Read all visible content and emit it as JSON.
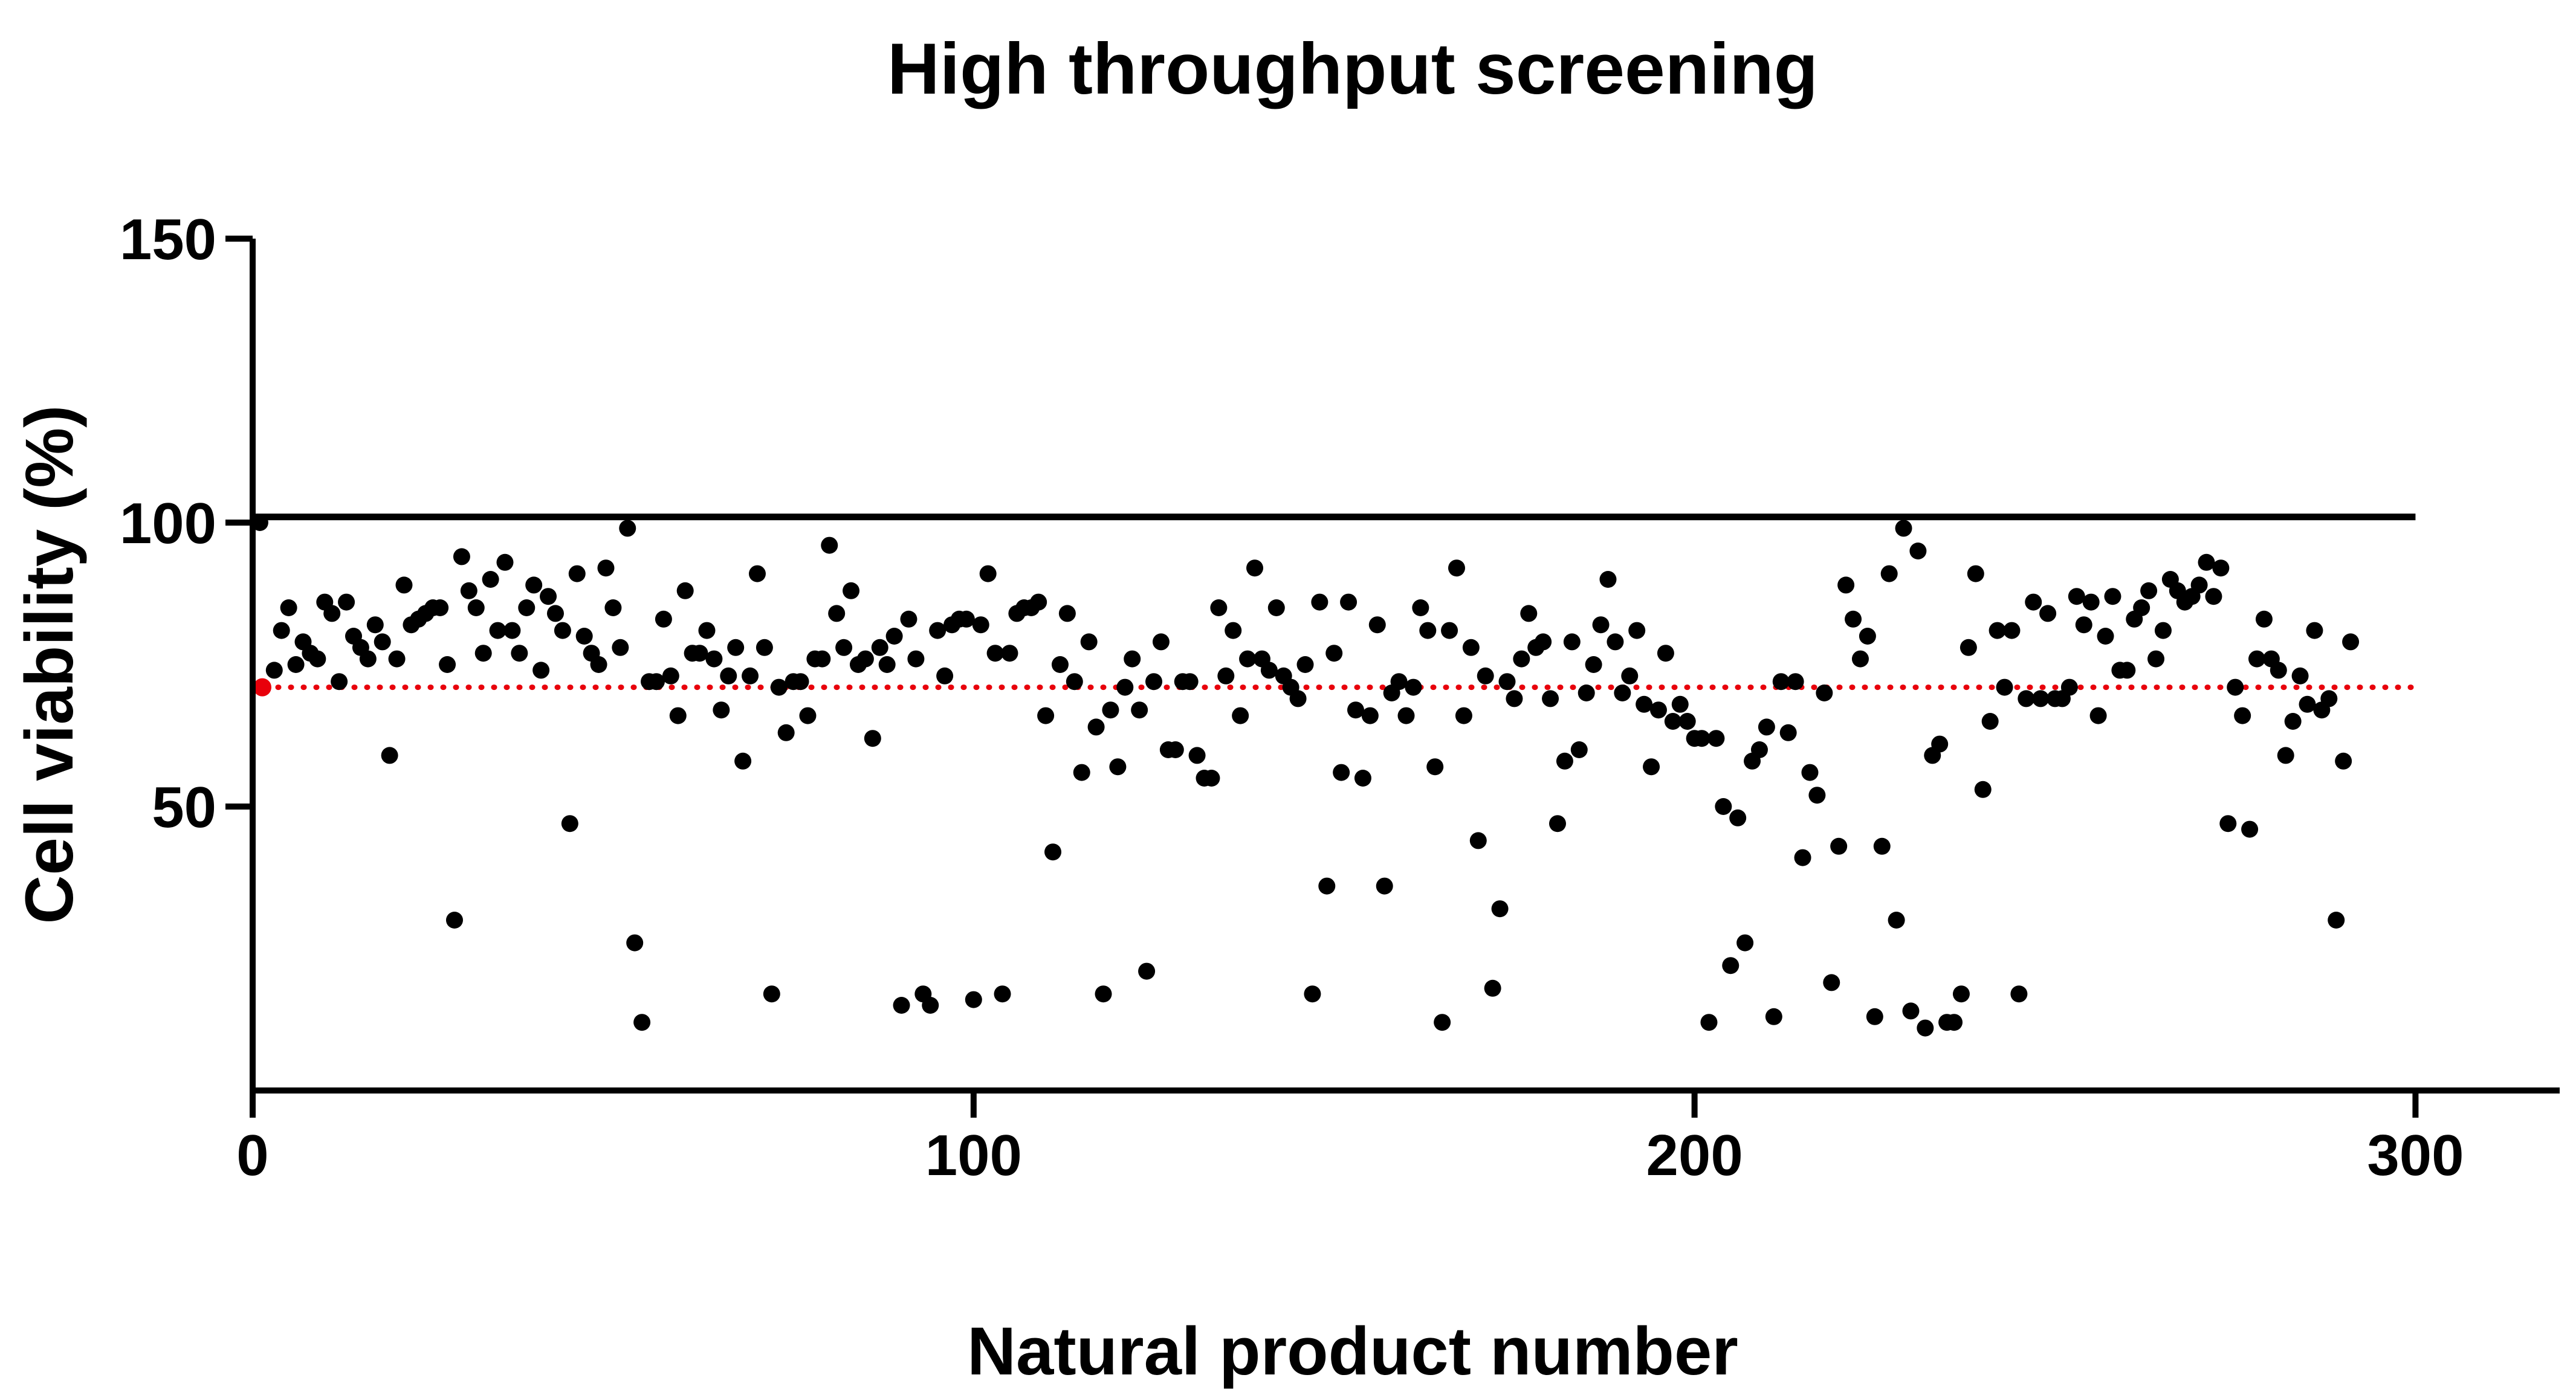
{
  "colors": {
    "points": "#000000",
    "axis": "#000000",
    "reference_line": "#000000",
    "threshold_line": "#e8000b",
    "background": "#ffffff"
  },
  "chart_data": {
    "type": "scatter",
    "title": "High throughput screening",
    "xlabel": "Natural product number",
    "ylabel": "Cell viability (%)",
    "xlim": [
      0,
      320
    ],
    "ylim": [
      0,
      150
    ],
    "x_ticks": [
      0,
      100,
      200,
      300
    ],
    "y_ticks": [
      50,
      100,
      150
    ],
    "x_tick_labels": [
      "0",
      "100",
      "200",
      "300"
    ],
    "y_tick_labels": [
      "50",
      "100",
      "150"
    ],
    "grid": false,
    "legend": "none",
    "reference_lines": [
      {
        "y": 101,
        "x_range": [
          0,
          300
        ],
        "style": "solid",
        "color": "#000000"
      },
      {
        "y": 71,
        "x_range": [
          0,
          300
        ],
        "style": "dotted",
        "color": "#e8000b"
      }
    ],
    "series": [
      {
        "marker": "circle",
        "color": "#000000",
        "points": [
          [
            1,
            100
          ],
          [
            3,
            74
          ],
          [
            4,
            81
          ],
          [
            5,
            85
          ],
          [
            6,
            75
          ],
          [
            7,
            79
          ],
          [
            8,
            77
          ],
          [
            9,
            76
          ],
          [
            10,
            86
          ],
          [
            11,
            84
          ],
          [
            12,
            72
          ],
          [
            13,
            86
          ],
          [
            14,
            80
          ],
          [
            15,
            78
          ],
          [
            16,
            76
          ],
          [
            17,
            82
          ],
          [
            18,
            79
          ],
          [
            19,
            59
          ],
          [
            20,
            76
          ],
          [
            21,
            89
          ],
          [
            22,
            82
          ],
          [
            23,
            83
          ],
          [
            24,
            84
          ],
          [
            25,
            85
          ],
          [
            26,
            85
          ],
          [
            27,
            75
          ],
          [
            28,
            30
          ],
          [
            29,
            94
          ],
          [
            30,
            88
          ],
          [
            31,
            85
          ],
          [
            32,
            77
          ],
          [
            33,
            90
          ],
          [
            34,
            81
          ],
          [
            35,
            93
          ],
          [
            36,
            81
          ],
          [
            37,
            77
          ],
          [
            38,
            85
          ],
          [
            39,
            89
          ],
          [
            40,
            74
          ],
          [
            41,
            87
          ],
          [
            42,
            84
          ],
          [
            43,
            81
          ],
          [
            44,
            47
          ],
          [
            45,
            91
          ],
          [
            46,
            80
          ],
          [
            47,
            77
          ],
          [
            48,
            75
          ],
          [
            49,
            92
          ],
          [
            50,
            85
          ],
          [
            51,
            78
          ],
          [
            52,
            99
          ],
          [
            53,
            26
          ],
          [
            54,
            12
          ],
          [
            55,
            72
          ],
          [
            56,
            72
          ],
          [
            57,
            83
          ],
          [
            58,
            73
          ],
          [
            59,
            66
          ],
          [
            60,
            88
          ],
          [
            61,
            77
          ],
          [
            62,
            77
          ],
          [
            63,
            81
          ],
          [
            64,
            76
          ],
          [
            65,
            67
          ],
          [
            66,
            73
          ],
          [
            67,
            78
          ],
          [
            68,
            58
          ],
          [
            69,
            73
          ],
          [
            70,
            91
          ],
          [
            71,
            78
          ],
          [
            72,
            17
          ],
          [
            73,
            71
          ],
          [
            74,
            63
          ],
          [
            75,
            72
          ],
          [
            76,
            72
          ],
          [
            77,
            66
          ],
          [
            78,
            76
          ],
          [
            79,
            76
          ],
          [
            80,
            96
          ],
          [
            81,
            84
          ],
          [
            82,
            78
          ],
          [
            83,
            88
          ],
          [
            84,
            75
          ],
          [
            85,
            76
          ],
          [
            86,
            62
          ],
          [
            87,
            78
          ],
          [
            88,
            75
          ],
          [
            89,
            80
          ],
          [
            90,
            15
          ],
          [
            91,
            83
          ],
          [
            92,
            76
          ],
          [
            93,
            17
          ],
          [
            94,
            15
          ],
          [
            95,
            81
          ],
          [
            96,
            73
          ],
          [
            97,
            82
          ],
          [
            98,
            83
          ],
          [
            99,
            83
          ],
          [
            100,
            16
          ],
          [
            101,
            82
          ],
          [
            102,
            91
          ],
          [
            103,
            77
          ],
          [
            104,
            17
          ],
          [
            105,
            77
          ],
          [
            106,
            84
          ],
          [
            107,
            85
          ],
          [
            108,
            85
          ],
          [
            109,
            86
          ],
          [
            110,
            66
          ],
          [
            111,
            42
          ],
          [
            112,
            75
          ],
          [
            113,
            84
          ],
          [
            114,
            72
          ],
          [
            115,
            56
          ],
          [
            116,
            79
          ],
          [
            117,
            64
          ],
          [
            118,
            17
          ],
          [
            119,
            67
          ],
          [
            120,
            57
          ],
          [
            121,
            71
          ],
          [
            122,
            76
          ],
          [
            123,
            67
          ],
          [
            124,
            21
          ],
          [
            125,
            72
          ],
          [
            126,
            79
          ],
          [
            127,
            60
          ],
          [
            128,
            60
          ],
          [
            129,
            72
          ],
          [
            130,
            72
          ],
          [
            131,
            59
          ],
          [
            132,
            55
          ],
          [
            133,
            55
          ],
          [
            134,
            85
          ],
          [
            135,
            73
          ],
          [
            136,
            81
          ],
          [
            137,
            66
          ],
          [
            138,
            76
          ],
          [
            139,
            92
          ],
          [
            140,
            76
          ],
          [
            141,
            74
          ],
          [
            142,
            85
          ],
          [
            143,
            73
          ],
          [
            144,
            71
          ],
          [
            145,
            69
          ],
          [
            146,
            75
          ],
          [
            147,
            17
          ],
          [
            148,
            86
          ],
          [
            149,
            36
          ],
          [
            150,
            77
          ],
          [
            151,
            56
          ],
          [
            152,
            86
          ],
          [
            153,
            67
          ],
          [
            154,
            55
          ],
          [
            155,
            66
          ],
          [
            156,
            82
          ],
          [
            157,
            36
          ],
          [
            158,
            70
          ],
          [
            159,
            72
          ],
          [
            160,
            66
          ],
          [
            161,
            71
          ],
          [
            162,
            85
          ],
          [
            163,
            81
          ],
          [
            164,
            57
          ],
          [
            165,
            12
          ],
          [
            166,
            81
          ],
          [
            167,
            92
          ],
          [
            168,
            66
          ],
          [
            169,
            78
          ],
          [
            170,
            44
          ],
          [
            171,
            73
          ],
          [
            172,
            18
          ],
          [
            173,
            32
          ],
          [
            174,
            72
          ],
          [
            175,
            69
          ],
          [
            176,
            76
          ],
          [
            177,
            84
          ],
          [
            178,
            78
          ],
          [
            179,
            79
          ],
          [
            180,
            69
          ],
          [
            181,
            47
          ],
          [
            182,
            58
          ],
          [
            183,
            79
          ],
          [
            184,
            60
          ],
          [
            185,
            70
          ],
          [
            186,
            75
          ],
          [
            187,
            82
          ],
          [
            188,
            90
          ],
          [
            189,
            79
          ],
          [
            190,
            70
          ],
          [
            191,
            73
          ],
          [
            192,
            81
          ],
          [
            193,
            68
          ],
          [
            194,
            57
          ],
          [
            195,
            67
          ],
          [
            196,
            77
          ],
          [
            197,
            65
          ],
          [
            198,
            68
          ],
          [
            199,
            65
          ],
          [
            200,
            62
          ],
          [
            201,
            62
          ],
          [
            202,
            12
          ],
          [
            203,
            62
          ],
          [
            204,
            50
          ],
          [
            205,
            22
          ],
          [
            206,
            48
          ],
          [
            207,
            26
          ],
          [
            208,
            58
          ],
          [
            209,
            60
          ],
          [
            210,
            64
          ],
          [
            211,
            13
          ],
          [
            212,
            72
          ],
          [
            213,
            63
          ],
          [
            214,
            72
          ],
          [
            215,
            41
          ],
          [
            216,
            56
          ],
          [
            217,
            52
          ],
          [
            218,
            70
          ],
          [
            219,
            19
          ],
          [
            220,
            43
          ],
          [
            221,
            89
          ],
          [
            222,
            83
          ],
          [
            223,
            76
          ],
          [
            224,
            80
          ],
          [
            225,
            13
          ],
          [
            226,
            43
          ],
          [
            227,
            91
          ],
          [
            228,
            30
          ],
          [
            229,
            99
          ],
          [
            230,
            14
          ],
          [
            231,
            95
          ],
          [
            232,
            11
          ],
          [
            233,
            59
          ],
          [
            234,
            61
          ],
          [
            235,
            12
          ],
          [
            236,
            12
          ],
          [
            237,
            17
          ],
          [
            238,
            78
          ],
          [
            239,
            91
          ],
          [
            240,
            53
          ],
          [
            241,
            65
          ],
          [
            242,
            81
          ],
          [
            243,
            71
          ],
          [
            244,
            81
          ],
          [
            245,
            17
          ],
          [
            246,
            69
          ],
          [
            247,
            86
          ],
          [
            248,
            69
          ],
          [
            249,
            84
          ],
          [
            250,
            69
          ],
          [
            251,
            69
          ],
          [
            252,
            71
          ],
          [
            253,
            87
          ],
          [
            254,
            82
          ],
          [
            255,
            86
          ],
          [
            256,
            66
          ],
          [
            257,
            80
          ],
          [
            258,
            87
          ],
          [
            259,
            74
          ],
          [
            260,
            74
          ],
          [
            261,
            83
          ],
          [
            262,
            85
          ],
          [
            263,
            88
          ],
          [
            264,
            76
          ],
          [
            265,
            81
          ],
          [
            266,
            90
          ],
          [
            267,
            88
          ],
          [
            268,
            86
          ],
          [
            269,
            87
          ],
          [
            270,
            89
          ],
          [
            271,
            93
          ],
          [
            272,
            87
          ],
          [
            273,
            92
          ],
          [
            274,
            47
          ],
          [
            275,
            71
          ],
          [
            276,
            66
          ],
          [
            277,
            46
          ],
          [
            278,
            76
          ],
          [
            279,
            83
          ],
          [
            280,
            76
          ],
          [
            281,
            74
          ],
          [
            282,
            59
          ],
          [
            283,
            65
          ],
          [
            284,
            73
          ],
          [
            285,
            68
          ],
          [
            286,
            81
          ],
          [
            287,
            67
          ],
          [
            288,
            69
          ],
          [
            289,
            30
          ],
          [
            290,
            58
          ],
          [
            291,
            79
          ]
        ]
      }
    ]
  }
}
